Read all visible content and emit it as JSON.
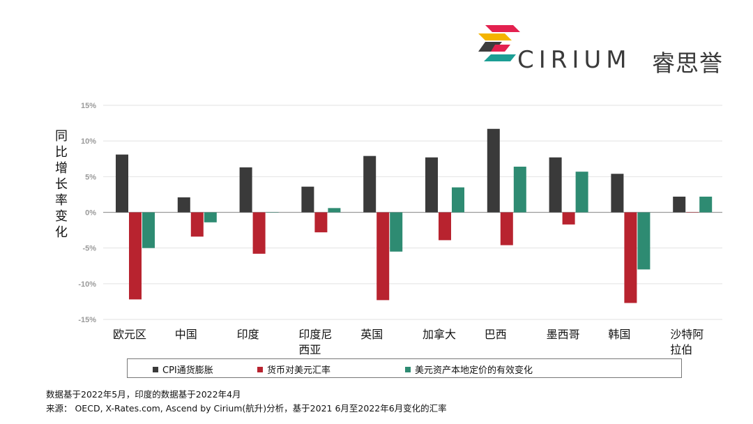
{
  "brand": {
    "name": "CIRIUM",
    "name_cn": "睿思誉",
    "logo_colors": [
      "#e3214f",
      "#f4b400",
      "#1b9e94",
      "#3d3d3d"
    ]
  },
  "chart_data": {
    "type": "bar",
    "ylabel": "同比增长率变化",
    "ylim": [
      -15,
      15
    ],
    "yticks": [
      15,
      10,
      5,
      0,
      -5,
      -10,
      -15
    ],
    "ytick_labels": [
      "15%",
      "10%",
      "5%",
      "0%",
      "-5%",
      "-10%",
      "-15%"
    ],
    "grid": true,
    "categories": [
      "欧元区",
      "中国",
      "印度",
      "印度尼西亚",
      "英国",
      "加拿大",
      "巴西",
      "墨西哥",
      "韩国",
      "沙特阿拉伯"
    ],
    "category_lines": [
      [
        "欧元区"
      ],
      [
        "中国"
      ],
      [
        "印度"
      ],
      [
        "印度尼",
        "西亚"
      ],
      [
        "英国"
      ],
      [
        "加拿大"
      ],
      [
        "巴西"
      ],
      [
        "墨西哥"
      ],
      [
        "韩国"
      ],
      [
        "沙特阿",
        "拉伯"
      ]
    ],
    "series": [
      {
        "name": "CPI通货膨胀",
        "color": "#3a3a3a",
        "values": [
          8.1,
          2.1,
          6.3,
          3.6,
          7.9,
          7.7,
          11.7,
          7.7,
          5.4,
          2.2
        ]
      },
      {
        "name": "货币对美元汇率",
        "color": "#b8232f",
        "values": [
          -12.2,
          -3.4,
          -5.8,
          -2.8,
          -12.3,
          -3.9,
          -4.6,
          -1.7,
          -12.7,
          0
        ]
      },
      {
        "name": "美元资产本地定价的有效变化",
        "color": "#2e8b72",
        "values": [
          -5.0,
          -1.4,
          0,
          0.6,
          -5.5,
          3.5,
          6.4,
          5.7,
          -8.0,
          2.2
        ]
      }
    ],
    "legend_position": "bottom"
  },
  "footnote": {
    "line1": "数据基于2022年5月，印度的数据基于2022年4月",
    "line2": "来源： OECD, X-Rates.com, Ascend by Cirium(航升)分析，基于2021 6月至2022年6月变化的汇率"
  }
}
